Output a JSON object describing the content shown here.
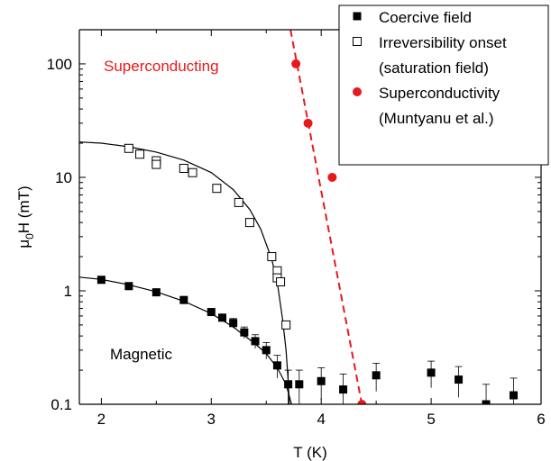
{
  "chart_data": {
    "type": "scatter",
    "xlabel": "T (K)",
    "ylabel_main": "μ",
    "ylabel_sub": "0",
    "ylabel_rest": "H (mT)",
    "xlim": [
      1.8,
      6.0
    ],
    "ylim": [
      0.1,
      200
    ],
    "yscale": "log",
    "xticks": [
      2,
      3,
      4,
      5,
      6
    ],
    "xtick_labels": [
      "2",
      "3",
      "4",
      "5",
      "6"
    ],
    "yticks": [
      0.1,
      1,
      10,
      100
    ],
    "ytick_labels": [
      "0.1",
      "1",
      "10",
      "100"
    ],
    "annotations": {
      "superconducting": "Superconducting",
      "magnetic": "Magnetic"
    },
    "colors": {
      "superconductivity": "#e8191c",
      "data": "#000000"
    },
    "series": [
      {
        "name": "Coercive field",
        "marker": "filled-square",
        "points": [
          {
            "x": 2.0,
            "y": 1.25,
            "err": 0
          },
          {
            "x": 2.25,
            "y": 1.1,
            "err": 0
          },
          {
            "x": 2.5,
            "y": 0.97,
            "err": 0
          },
          {
            "x": 2.75,
            "y": 0.83,
            "err": 0
          },
          {
            "x": 3.0,
            "y": 0.65,
            "err": 0
          },
          {
            "x": 3.1,
            "y": 0.58,
            "err": 0
          },
          {
            "x": 3.2,
            "y": 0.52,
            "err": 0.05
          },
          {
            "x": 3.3,
            "y": 0.43,
            "err": 0.05
          },
          {
            "x": 3.4,
            "y": 0.36,
            "err": 0.05
          },
          {
            "x": 3.5,
            "y": 0.3,
            "err": 0.05
          },
          {
            "x": 3.6,
            "y": 0.22,
            "err": 0.05
          },
          {
            "x": 3.7,
            "y": 0.15,
            "err": 0.05
          },
          {
            "x": 3.8,
            "y": 0.15,
            "err": 0.05
          },
          {
            "x": 4.0,
            "y": 0.16,
            "err": 0.05
          },
          {
            "x": 4.2,
            "y": 0.135,
            "err": 0.05
          },
          {
            "x": 4.5,
            "y": 0.18,
            "err": 0.05
          },
          {
            "x": 5.0,
            "y": 0.19,
            "err": 0.05
          },
          {
            "x": 5.25,
            "y": 0.165,
            "err": 0.05
          },
          {
            "x": 5.5,
            "y": 0.1,
            "err": 0.05
          },
          {
            "x": 5.75,
            "y": 0.12,
            "err": 0.05
          }
        ]
      },
      {
        "name": "Irreversibility onset (saturation field)",
        "marker": "open-square",
        "points": [
          {
            "x": 2.25,
            "y": 18
          },
          {
            "x": 2.35,
            "y": 16
          },
          {
            "x": 2.5,
            "y": 14
          },
          {
            "x": 2.5,
            "y": 13
          },
          {
            "x": 2.75,
            "y": 12
          },
          {
            "x": 2.83,
            "y": 11
          },
          {
            "x": 3.05,
            "y": 8
          },
          {
            "x": 3.25,
            "y": 6
          },
          {
            "x": 3.35,
            "y": 4
          },
          {
            "x": 3.55,
            "y": 2
          },
          {
            "x": 3.6,
            "y": 1.5
          },
          {
            "x": 3.6,
            "y": 1.3
          },
          {
            "x": 3.63,
            "y": 1.2
          },
          {
            "x": 3.68,
            "y": 0.5
          }
        ]
      },
      {
        "name": "Superconductivity (Muntyanu et al.)",
        "marker": "filled-circle",
        "points": [
          {
            "x": 3.77,
            "y": 100
          },
          {
            "x": 3.88,
            "y": 30
          },
          {
            "x": 4.1,
            "y": 10
          },
          {
            "x": 4.37,
            "y": 0.1
          }
        ]
      }
    ],
    "fit_curves": [
      {
        "of": "Irreversibility onset (saturation field)",
        "points": [
          [
            1.8,
            20.5
          ],
          [
            2.0,
            20.0
          ],
          [
            2.25,
            18.6
          ],
          [
            2.5,
            16.7
          ],
          [
            2.75,
            14.2
          ],
          [
            3.0,
            11.0
          ],
          [
            3.2,
            7.8
          ],
          [
            3.35,
            5.2
          ],
          [
            3.45,
            3.5
          ],
          [
            3.55,
            1.9
          ],
          [
            3.6,
            1.2
          ],
          [
            3.65,
            0.55
          ],
          [
            3.68,
            0.3
          ],
          [
            3.7,
            0.16
          ],
          [
            3.71,
            0.1
          ]
        ]
      },
      {
        "of": "Coercive field",
        "points": [
          [
            1.8,
            1.32
          ],
          [
            2.0,
            1.26
          ],
          [
            2.25,
            1.13
          ],
          [
            2.5,
            0.98
          ],
          [
            2.75,
            0.81
          ],
          [
            3.0,
            0.63
          ],
          [
            3.2,
            0.48
          ],
          [
            3.4,
            0.34
          ],
          [
            3.5,
            0.28
          ],
          [
            3.6,
            0.21
          ],
          [
            3.68,
            0.15
          ],
          [
            3.73,
            0.1
          ]
        ]
      },
      {
        "of": "Superconductivity (Muntyanu et al.)",
        "style": "dashed",
        "points": [
          [
            3.72,
            200
          ],
          [
            4.37,
            0.1
          ]
        ]
      }
    ],
    "legend": {
      "position": "top-right",
      "entries": [
        {
          "marker": "filled-square",
          "lines": [
            "Coercive field"
          ]
        },
        {
          "marker": "open-square",
          "lines": [
            "Irreversibility onset",
            "(saturation field)"
          ]
        },
        {
          "marker": "filled-circle",
          "lines": [
            "Superconductivity",
            "(Muntyanu et al.)"
          ]
        }
      ]
    }
  }
}
